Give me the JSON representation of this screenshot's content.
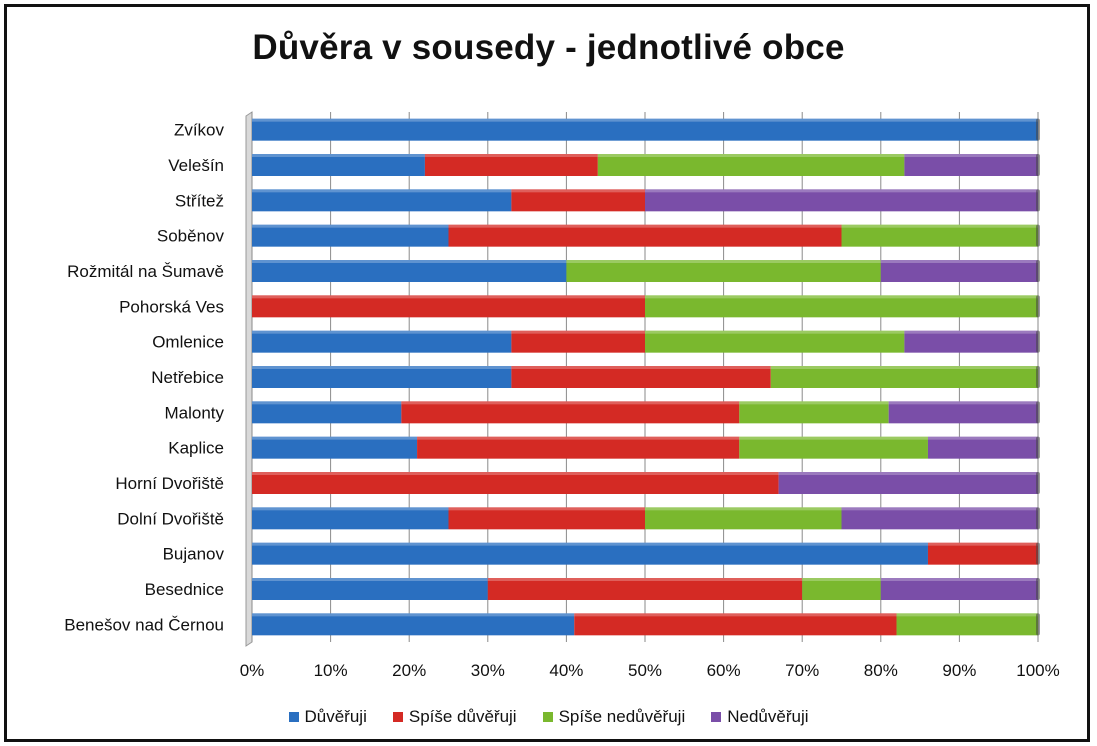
{
  "chart_data": {
    "type": "bar",
    "orientation": "horizontal",
    "stacked": "percent",
    "title": "Důvěra v sousedy - jednotlivé obce",
    "categories": [
      "Zvíkov",
      "Velešín",
      "Střítež",
      "Soběnov",
      "Rožmitál na Šumavě",
      "Pohorská Ves",
      "Omlenice",
      "Netřebice",
      "Malonty",
      "Kaplice",
      "Horní Dvořiště",
      "Dolní Dvořiště",
      "Bujanov",
      "Besednice",
      "Benešov nad Černou"
    ],
    "series": [
      {
        "name": "Důvěřuji",
        "color": "#2a6fc0",
        "values": [
          100,
          22,
          33,
          25,
          40,
          0,
          33,
          33,
          19,
          21,
          0,
          25,
          86,
          30,
          41
        ]
      },
      {
        "name": "Spíše důvěřuji",
        "color": "#d42a24",
        "values": [
          0,
          22,
          17,
          50,
          0,
          50,
          17,
          33,
          43,
          41,
          67,
          25,
          14,
          40,
          41
        ]
      },
      {
        "name": "Spíše nedůvěřuji",
        "color": "#7ab82e",
        "values": [
          0,
          39,
          0,
          25,
          40,
          50,
          33,
          34,
          19,
          24,
          0,
          25,
          0,
          10,
          18
        ]
      },
      {
        "name": "Nedůvěřuji",
        "color": "#7a4ea8",
        "values": [
          0,
          17,
          50,
          0,
          20,
          0,
          17,
          0,
          19,
          14,
          33,
          25,
          0,
          20,
          0
        ]
      }
    ],
    "xlim": [
      0,
      100
    ],
    "xticks": [
      "0%",
      "10%",
      "20%",
      "30%",
      "40%",
      "50%",
      "60%",
      "70%",
      "80%",
      "90%",
      "100%"
    ],
    "grid": true,
    "legend": "bottom"
  }
}
